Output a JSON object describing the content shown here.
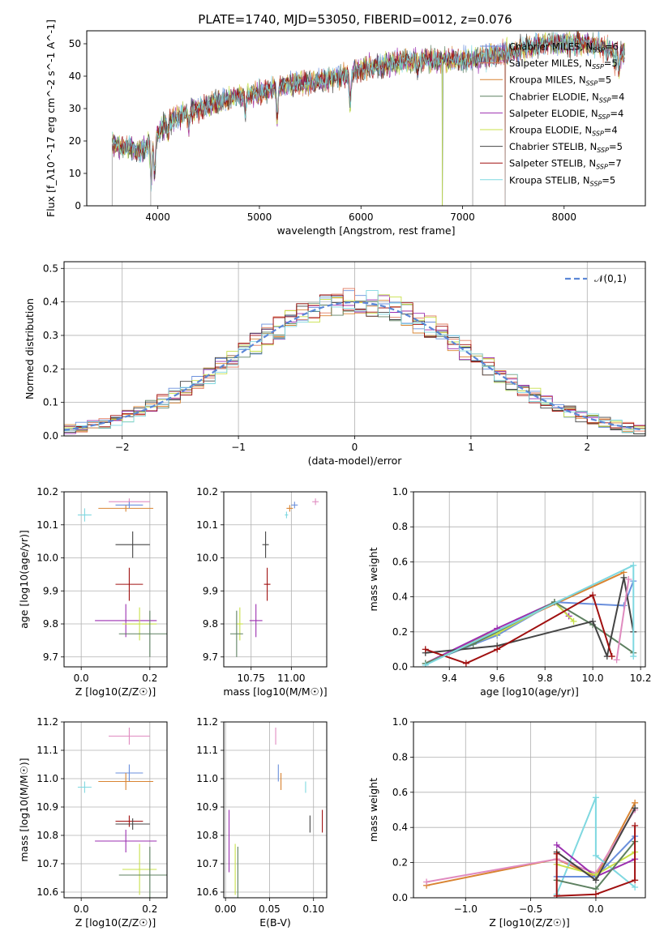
{
  "figure": {
    "title": "PLATE=1740, MJD=53050, FIBERID=0012, z=0.076",
    "colors": {
      "chabrier_miles": "#6a8fdc",
      "salpeter_miles": "#e07a5f",
      "kroupa_miles": "#d98432",
      "chabrier_elodie": "#5d8060",
      "salpeter_elodie": "#9b2fb0",
      "kroupa_elodie": "#c8e04a",
      "chabrier_stelib": "#444444",
      "salpeter_stelib": "#a01010",
      "kroupa_stelib": "#7fd8e0",
      "pink": "#e08bc0"
    }
  },
  "chart_data": [
    {
      "id": "spectrum",
      "type": "line",
      "title": "PLATE=1740, MJD=53050, FIBERID=0012, z=0.076",
      "xlabel": "wavelength [Angstrom, rest frame]",
      "ylabel": "Flux [f_λ10^-17 erg cm^-2 s^-1 A^-1]",
      "xlim": [
        3300,
        8800
      ],
      "ylim": [
        0,
        54
      ],
      "xticks": [
        4000,
        5000,
        6000,
        7000,
        8000
      ],
      "yticks": [
        0,
        10,
        20,
        30,
        40,
        50
      ],
      "grid": false,
      "legend_position": "top-right",
      "continuum": {
        "x": [
          3550,
          3700,
          3850,
          3950,
          4100,
          4300,
          4500,
          4800,
          5000,
          5200,
          5500,
          5800,
          6000,
          6300,
          6600,
          7000,
          7400,
          7800,
          8200,
          8600
        ],
        "y": [
          19,
          18,
          17,
          21,
          26,
          29,
          31,
          34,
          35,
          37,
          38,
          40,
          42,
          44,
          45,
          45,
          47,
          50,
          50,
          47
        ]
      },
      "dropouts": [
        3550,
        3930,
        6800,
        7100,
        7420
      ],
      "series": [
        {
          "name": "Chabrier MILES, N_SSP=6",
          "color_key": "chabrier_miles"
        },
        {
          "name": "Salpeter MILES, N_SSP=5",
          "color_key": "salpeter_miles"
        },
        {
          "name": "Kroupa MILES, N_SSP=5",
          "color_key": "kroupa_miles"
        },
        {
          "name": "Chabrier ELODIE, N_SSP=4",
          "color_key": "chabrier_elodie"
        },
        {
          "name": "Salpeter ELODIE, N_SSP=4",
          "color_key": "salpeter_elodie"
        },
        {
          "name": "Kroupa ELODIE, N_SSP=4",
          "color_key": "kroupa_elodie"
        },
        {
          "name": "Chabrier STELIB, N_SSP=5",
          "color_key": "chabrier_stelib"
        },
        {
          "name": "Salpeter STELIB, N_SSP=7",
          "color_key": "salpeter_stelib"
        },
        {
          "name": "Kroupa STELIB, N_SSP=5",
          "color_key": "kroupa_stelib"
        }
      ]
    },
    {
      "id": "residuals",
      "type": "bar",
      "xlabel": "(data-model)/error",
      "ylabel": "Normed distribution",
      "xlim": [
        -2.5,
        2.5
      ],
      "ylim": [
        0,
        0.52
      ],
      "xticks": [
        -2,
        -1,
        0,
        1,
        2
      ],
      "yticks": [
        0.0,
        0.1,
        0.2,
        0.3,
        0.4,
        0.5
      ],
      "grid": true,
      "legend_position": "top-right",
      "reference": {
        "name": "𝒩(0,1)",
        "mean": 0,
        "sigma": 1,
        "color": "#5b87d6"
      },
      "bin_width": 0.1
    },
    {
      "id": "age_vs_Z",
      "type": "scatter",
      "xlabel": "Z [log10(Z/Z☉)]",
      "ylabel": "age  [log10(age/yr)]",
      "xlim": [
        -0.05,
        0.25
      ],
      "ylim": [
        9.67,
        10.2
      ],
      "xticks": [
        0.0,
        0.2
      ],
      "yticks": [
        9.7,
        9.8,
        9.9,
        10.0,
        10.1,
        10.2
      ],
      "grid": true,
      "points": [
        {
          "c": "kroupa_stelib",
          "x": 0.01,
          "y": 10.13,
          "xe": 0.02,
          "ye": 0.02
        },
        {
          "c": "kroupa_miles",
          "x": 0.13,
          "y": 10.15,
          "xe": 0.08,
          "ye": 0.01
        },
        {
          "c": "pink",
          "x": 0.14,
          "y": 10.17,
          "xe": 0.06,
          "ye": 0.01
        },
        {
          "c": "chabrier_miles",
          "x": 0.14,
          "y": 10.16,
          "xe": 0.04,
          "ye": 0.01
        },
        {
          "c": "chabrier_stelib",
          "x": 0.15,
          "y": 10.04,
          "xe": 0.05,
          "ye": 0.04
        },
        {
          "c": "salpeter_stelib",
          "x": 0.14,
          "y": 9.92,
          "xe": 0.04,
          "ye": 0.05
        },
        {
          "c": "salpeter_elodie",
          "x": 0.13,
          "y": 9.81,
          "xe": 0.09,
          "ye": 0.05
        },
        {
          "c": "kroupa_elodie",
          "x": 0.17,
          "y": 9.8,
          "xe": 0.05,
          "ye": 0.05
        },
        {
          "c": "chabrier_elodie",
          "x": 0.2,
          "y": 9.77,
          "xe": 0.09,
          "ye": 0.07
        }
      ]
    },
    {
      "id": "age_vs_mass",
      "type": "scatter",
      "xlabel": "mass [log10(M/M☉)]",
      "ylabel": "",
      "xlim": [
        10.58,
        11.22
      ],
      "ylim": [
        9.67,
        10.2
      ],
      "xticks": [
        10.75,
        11.0
      ],
      "yticks": [
        9.7,
        9.8,
        9.9,
        10.0,
        10.1,
        10.2
      ],
      "grid": true,
      "points": [
        {
          "c": "kroupa_stelib",
          "x": 10.97,
          "y": 10.13,
          "xe": 0.01,
          "ye": 0.01
        },
        {
          "c": "kroupa_miles",
          "x": 10.99,
          "y": 10.15,
          "xe": 0.02,
          "ye": 0.01
        },
        {
          "c": "pink",
          "x": 11.15,
          "y": 10.17,
          "xe": 0.02,
          "ye": 0.01
        },
        {
          "c": "chabrier_miles",
          "x": 11.02,
          "y": 10.16,
          "xe": 0.02,
          "ye": 0.01
        },
        {
          "c": "chabrier_stelib",
          "x": 10.84,
          "y": 10.04,
          "xe": 0.02,
          "ye": 0.04
        },
        {
          "c": "salpeter_stelib",
          "x": 10.85,
          "y": 9.92,
          "xe": 0.02,
          "ye": 0.05
        },
        {
          "c": "salpeter_elodie",
          "x": 10.78,
          "y": 9.81,
          "xe": 0.04,
          "ye": 0.05
        },
        {
          "c": "kroupa_elodie",
          "x": 10.68,
          "y": 9.8,
          "xe": 0.02,
          "ye": 0.05
        },
        {
          "c": "chabrier_elodie",
          "x": 10.66,
          "y": 9.77,
          "xe": 0.04,
          "ye": 0.07
        }
      ]
    },
    {
      "id": "mass_weight_vs_age",
      "type": "line",
      "xlabel": "age  [log10(age/yr)]",
      "ylabel": "mass weight",
      "xlim": [
        9.25,
        10.22
      ],
      "ylim": [
        0.0,
        1.0
      ],
      "xticks": [
        9.4,
        9.6,
        9.8,
        10.0,
        10.2
      ],
      "yticks": [
        0.0,
        0.2,
        0.4,
        0.6,
        0.8,
        1.0
      ],
      "grid": true,
      "series": [
        {
          "c": "kroupa_miles",
          "x": [
            9.3,
            10.13
          ],
          "y": [
            0.02,
            0.54
          ]
        },
        {
          "c": "chabrier_miles",
          "x": [
            9.3,
            9.6,
            9.84,
            10.13,
            10.17
          ],
          "y": [
            0.02,
            0.18,
            0.37,
            0.35,
            0.49
          ]
        },
        {
          "c": "salpeter_elodie",
          "x": [
            9.3,
            9.6,
            9.84,
            9.9
          ],
          "y": [
            0.02,
            0.22,
            0.37,
            0.29
          ]
        },
        {
          "c": "kroupa_elodie",
          "x": [
            9.3,
            9.6,
            9.84,
            9.92
          ],
          "y": [
            0.02,
            0.19,
            0.37,
            0.26
          ]
        },
        {
          "c": "chabrier_elodie",
          "x": [
            9.3,
            9.5,
            9.84,
            10.0,
            10.17
          ],
          "y": [
            0.02,
            0.13,
            0.37,
            0.24,
            0.08
          ]
        },
        {
          "c": "chabrier_stelib",
          "x": [
            9.3,
            9.6,
            10.0,
            10.06,
            10.13,
            10.17
          ],
          "y": [
            0.08,
            0.12,
            0.26,
            0.06,
            0.51,
            0.2
          ]
        },
        {
          "c": "salpeter_stelib",
          "x": [
            9.3,
            9.47,
            9.6,
            10.0,
            10.08
          ],
          "y": [
            0.1,
            0.02,
            0.1,
            0.41,
            0.06
          ]
        },
        {
          "c": "kroupa_stelib",
          "x": [
            9.3,
            10.17,
            10.17
          ],
          "y": [
            0.01,
            0.58,
            0.06
          ]
        },
        {
          "c": "pink",
          "x": [
            10.1,
            10.15
          ],
          "y": [
            0.04,
            0.5
          ]
        }
      ]
    },
    {
      "id": "mass_vs_Z",
      "type": "scatter",
      "xlabel": "Z [log10(Z/Z☉)]",
      "ylabel": "mass [log10(M/M☉)]",
      "xlim": [
        -0.05,
        0.25
      ],
      "ylim": [
        10.58,
        11.2
      ],
      "xticks": [
        0.0,
        0.2
      ],
      "yticks": [
        10.6,
        10.7,
        10.8,
        10.9,
        11.0,
        11.1,
        11.2
      ],
      "grid": true,
      "points": [
        {
          "c": "pink",
          "x": 0.14,
          "y": 11.15,
          "xe": 0.06,
          "ye": 0.03
        },
        {
          "c": "chabrier_miles",
          "x": 0.14,
          "y": 11.02,
          "xe": 0.04,
          "ye": 0.03
        },
        {
          "c": "kroupa_miles",
          "x": 0.13,
          "y": 10.99,
          "xe": 0.08,
          "ye": 0.03
        },
        {
          "c": "kroupa_stelib",
          "x": 0.01,
          "y": 10.97,
          "xe": 0.02,
          "ye": 0.02
        },
        {
          "c": "salpeter_stelib",
          "x": 0.14,
          "y": 10.85,
          "xe": 0.04,
          "ye": 0.02
        },
        {
          "c": "chabrier_stelib",
          "x": 0.15,
          "y": 10.84,
          "xe": 0.05,
          "ye": 0.02
        },
        {
          "c": "salpeter_elodie",
          "x": 0.13,
          "y": 10.78,
          "xe": 0.09,
          "ye": 0.04
        },
        {
          "c": "kroupa_elodie",
          "x": 0.17,
          "y": 10.68,
          "xe": 0.05,
          "ye": 0.09
        },
        {
          "c": "chabrier_elodie",
          "x": 0.2,
          "y": 10.66,
          "xe": 0.09,
          "ye": 0.1
        }
      ]
    },
    {
      "id": "mass_vs_ebv",
      "type": "scatter",
      "xlabel": "E(B-V)",
      "ylabel": "",
      "xlim": [
        -0.002,
        0.115
      ],
      "ylim": [
        10.58,
        11.2
      ],
      "xticks": [
        0.0,
        0.05,
        0.1
      ],
      "yticks": [
        10.6,
        10.7,
        10.8,
        10.9,
        11.0,
        11.1,
        11.2
      ],
      "grid": true,
      "points": [
        {
          "c": "pink",
          "x": 0.057,
          "y": 11.15,
          "xe": 0.0,
          "ye": 0.03
        },
        {
          "c": "chabrier_miles",
          "x": 0.06,
          "y": 11.02,
          "xe": 0.0,
          "ye": 0.03
        },
        {
          "c": "kroupa_miles",
          "x": 0.063,
          "y": 10.99,
          "xe": 0.0,
          "ye": 0.03
        },
        {
          "c": "kroupa_stelib",
          "x": 0.091,
          "y": 10.97,
          "xe": 0.0,
          "ye": 0.02
        },
        {
          "c": "salpeter_stelib",
          "x": 0.11,
          "y": 10.85,
          "xe": 0.0,
          "ye": 0.04
        },
        {
          "c": "chabrier_stelib",
          "x": 0.096,
          "y": 10.84,
          "xe": 0.0,
          "ye": 0.03
        },
        {
          "c": "salpeter_elodie",
          "x": 0.004,
          "y": 10.78,
          "xe": 0.0,
          "ye": 0.11
        },
        {
          "c": "kroupa_elodie",
          "x": 0.011,
          "y": 10.68,
          "xe": 0.0,
          "ye": 0.09
        },
        {
          "c": "chabrier_elodie",
          "x": 0.014,
          "y": 10.66,
          "xe": 0.0,
          "ye": 0.1
        }
      ]
    },
    {
      "id": "mass_weight_vs_Z",
      "type": "line",
      "xlabel": "Z [log10(Z/Z☉)]",
      "ylabel": "mass weight",
      "xlim": [
        -1.4,
        0.38
      ],
      "ylim": [
        0.0,
        1.0
      ],
      "xticks": [
        -1.0,
        -0.5,
        0.0
      ],
      "yticks": [
        0.0,
        0.2,
        0.4,
        0.6,
        0.8,
        1.0
      ],
      "grid": true,
      "series": [
        {
          "c": "kroupa_miles",
          "x": [
            -1.3,
            -0.3,
            0.0,
            0.3
          ],
          "y": [
            0.07,
            0.22,
            0.12,
            0.54
          ]
        },
        {
          "c": "pink",
          "x": [
            -1.3,
            -0.3,
            0.0,
            0.3
          ],
          "y": [
            0.09,
            0.22,
            0.14,
            0.5
          ]
        },
        {
          "c": "kroupa_stelib",
          "x": [
            -0.3,
            0.0,
            0.0,
            0.3
          ],
          "y": [
            0.02,
            0.57,
            0.24,
            0.06
          ]
        },
        {
          "c": "salpeter_elodie",
          "x": [
            -0.3,
            0.0,
            0.3
          ],
          "y": [
            0.3,
            0.12,
            0.22
          ]
        },
        {
          "c": "chabrier_miles",
          "x": [
            -0.3,
            0.0,
            0.3
          ],
          "y": [
            0.12,
            0.12,
            0.35
          ]
        },
        {
          "c": "kroupa_elodie",
          "x": [
            -0.3,
            0.0,
            0.3
          ],
          "y": [
            0.19,
            0.13,
            0.26
          ]
        },
        {
          "c": "chabrier_elodie",
          "x": [
            -0.3,
            0.0,
            0.3
          ],
          "y": [
            0.1,
            0.05,
            0.32
          ]
        },
        {
          "c": "chabrier_stelib",
          "x": [
            -0.3,
            0.0,
            0.3
          ],
          "y": [
            0.26,
            0.1,
            0.51
          ]
        },
        {
          "c": "salpeter_stelib",
          "x": [
            -0.3,
            -0.3,
            0.0,
            0.3,
            0.3
          ],
          "y": [
            0.25,
            0.01,
            0.02,
            0.1,
            0.41
          ]
        }
      ]
    }
  ]
}
